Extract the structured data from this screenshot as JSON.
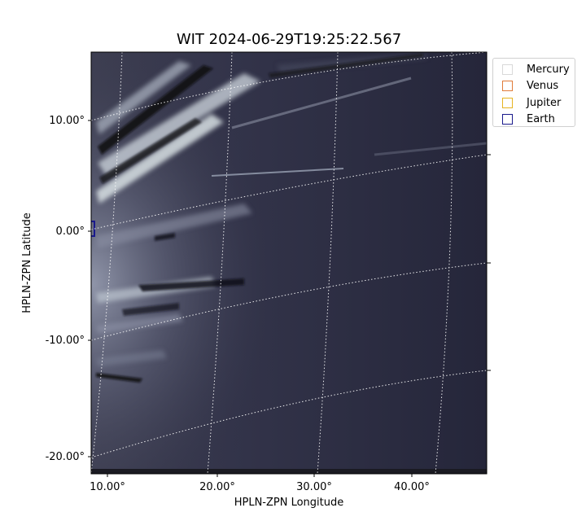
{
  "chart_data": {
    "type": "image",
    "title": "WIT 2024-06-29T19:25:22.567",
    "xlabel": "HPLN-ZPN Longitude",
    "ylabel": "HPLN-ZPN Latitude",
    "x_ticks": [
      "10.00°",
      "20.00°",
      "30.00°",
      "40.00°"
    ],
    "y_ticks": [
      "10.00°",
      "0.00°",
      "-10.00°",
      "-20.00°"
    ],
    "colormap": "bone (grayscale-blue)",
    "grid": true,
    "legend_position": "upper-right outside",
    "legend": [
      {
        "name": "Mercury",
        "color": "#d9d9d9"
      },
      {
        "name": "Venus",
        "color": "#e07b39"
      },
      {
        "name": "Jupiter",
        "color": "#e6b422"
      },
      {
        "name": "Earth",
        "color": "#1a1a8c"
      }
    ]
  }
}
